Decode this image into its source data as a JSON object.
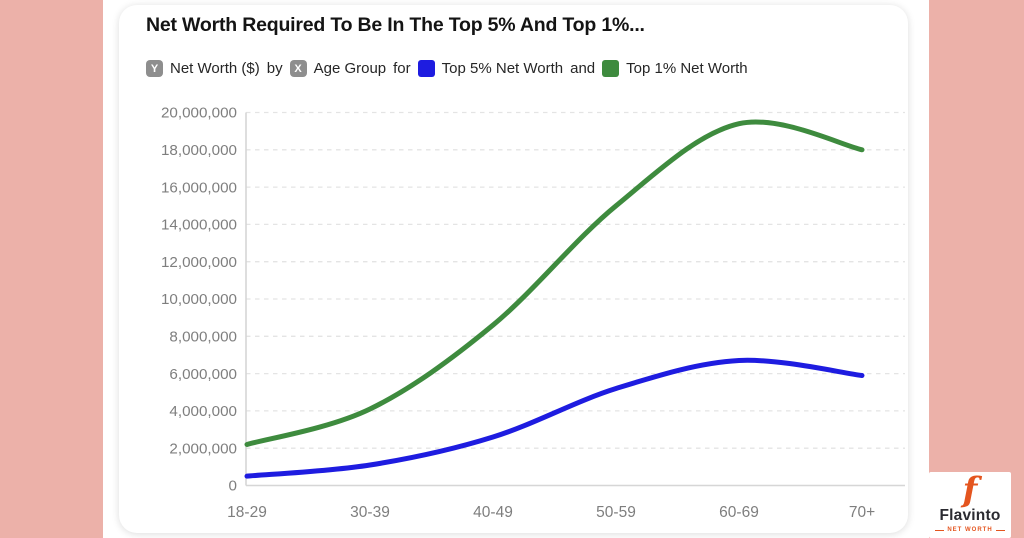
{
  "page": {
    "colors": {
      "background_pink": "#ecb1a9",
      "card": "#ffffff",
      "grid": "#e4e4e4",
      "axis_line": "#d6d6d6",
      "axis_text": "#7e7e7e",
      "title_text": "#141414",
      "badge_gray": "#8e8e8e",
      "brand_orange": "#e4551f"
    },
    "brand": {
      "lettermark": "f",
      "name": "Flavinto",
      "tagline": "NET WORTH"
    }
  },
  "chart_data": {
    "type": "line",
    "title": "Net Worth Required To Be In The Top 5% And Top 1%...",
    "subtitle": {
      "y_badge": "Y",
      "y_label": "Net Worth ($)",
      "by_word": "by",
      "x_badge": "X",
      "x_label": "Age Group",
      "for_word": "for",
      "series1_label": "Top 5% Net Worth",
      "and_word": "and",
      "series2_label": "Top 1% Net Worth"
    },
    "categories": [
      "18-29",
      "30-39",
      "40-49",
      "50-59",
      "60-69",
      "70+"
    ],
    "series": [
      {
        "name": "Top 5% Net Worth",
        "color": "#1e1ce0",
        "values": [
          500000,
          1100000,
          2600000,
          5200000,
          6700000,
          5900000
        ]
      },
      {
        "name": "Top 1% Net Worth",
        "color": "#3e8b3e",
        "values": [
          2200000,
          4100000,
          8600000,
          15000000,
          19400000,
          18000000
        ]
      }
    ],
    "xlabel": "Age Group",
    "ylabel": "Net Worth ($)",
    "ylim": [
      0,
      20000000
    ],
    "ytick_step": 2000000,
    "grid": "dashed-horizontal",
    "legend_position": "top",
    "curve": "smooth"
  }
}
